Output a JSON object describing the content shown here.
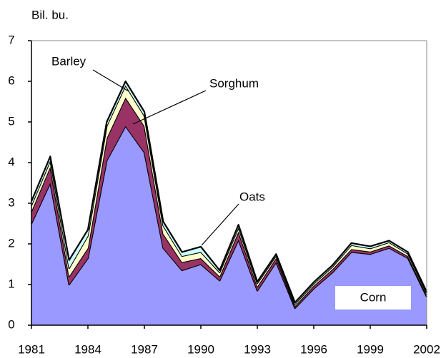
{
  "chart_data": {
    "type": "stacked_area",
    "y_label": "Bil. bu.",
    "x": [
      1981,
      1982,
      1983,
      1984,
      1985,
      1986,
      1987,
      1988,
      1989,
      1990,
      1991,
      1992,
      1993,
      1994,
      1995,
      1996,
      1997,
      1998,
      1999,
      2000,
      2001,
      2002
    ],
    "xlim": [
      1981,
      2002
    ],
    "xticks": [
      1981,
      1984,
      1987,
      1990,
      1993,
      1996,
      1999,
      2002
    ],
    "ylim": [
      0,
      7
    ],
    "yticks": [
      0,
      1,
      2,
      3,
      4,
      5,
      6,
      7
    ],
    "series": [
      {
        "name": "Corn",
        "color": "#9999ff",
        "values": [
          2.5,
          3.5,
          1.0,
          1.65,
          4.05,
          4.9,
          4.25,
          1.9,
          1.35,
          1.5,
          1.1,
          2.1,
          0.85,
          1.55,
          0.42,
          0.9,
          1.3,
          1.8,
          1.75,
          1.9,
          1.65,
          0.7
        ]
      },
      {
        "name": "Sorghum",
        "color": "#993366",
        "values": [
          0.3,
          0.4,
          0.2,
          0.25,
          0.55,
          0.7,
          0.65,
          0.35,
          0.2,
          0.15,
          0.1,
          0.2,
          0.1,
          0.1,
          0.05,
          0.07,
          0.08,
          0.07,
          0.06,
          0.06,
          0.05,
          0.04
        ]
      },
      {
        "name": "Barley",
        "color": "#ffffcc",
        "values": [
          0.15,
          0.15,
          0.2,
          0.3,
          0.3,
          0.3,
          0.25,
          0.2,
          0.15,
          0.15,
          0.1,
          0.1,
          0.08,
          0.06,
          0.05,
          0.05,
          0.06,
          0.1,
          0.08,
          0.08,
          0.06,
          0.05
        ]
      },
      {
        "name": "Oats",
        "color": "#ccffff",
        "values": [
          0.1,
          0.1,
          0.2,
          0.15,
          0.1,
          0.1,
          0.1,
          0.1,
          0.1,
          0.13,
          0.05,
          0.07,
          0.04,
          0.04,
          0.04,
          0.04,
          0.04,
          0.05,
          0.05,
          0.04,
          0.04,
          0.03
        ]
      }
    ]
  }
}
